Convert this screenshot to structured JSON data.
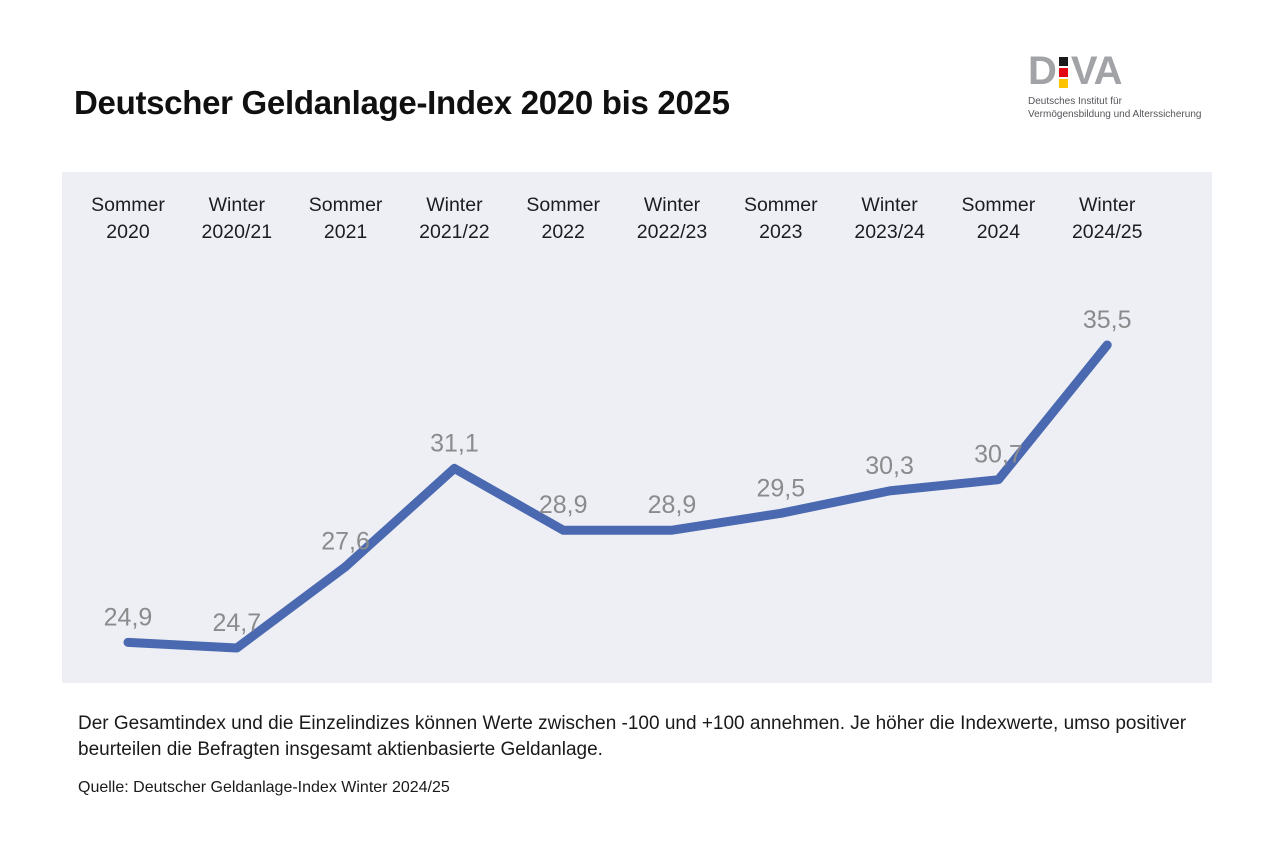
{
  "page": {
    "title": "Deutscher Geldanlage-Index 2020 bis 2025"
  },
  "logo": {
    "letter_d": "D",
    "letters_va": "VA",
    "tagline_line1": "Deutsches Institut für",
    "tagline_line2": "Vermögensbildung und Alterssicherung",
    "colors": {
      "letters": "#a1a3a6",
      "square_black": "#1a1a1a",
      "square_red": "#e30613",
      "square_yellow": "#fdc300"
    }
  },
  "chart_data": {
    "type": "line",
    "title": "Deutscher Geldanlage-Index 2020 bis 2025",
    "categories": [
      {
        "line1": "Sommer",
        "line2": "2020"
      },
      {
        "line1": "Winter",
        "line2": "2020/21"
      },
      {
        "line1": "Sommer",
        "line2": "2021"
      },
      {
        "line1": "Winter",
        "line2": "2021/22"
      },
      {
        "line1": "Sommer",
        "line2": "2022"
      },
      {
        "line1": "Winter",
        "line2": "2022/23"
      },
      {
        "line1": "Sommer",
        "line2": "2023"
      },
      {
        "line1": "Winter",
        "line2": "2023/24"
      },
      {
        "line1": "Sommer",
        "line2": "2024"
      },
      {
        "line1": "Winter",
        "line2": "2024/25"
      }
    ],
    "values": [
      24.9,
      24.7,
      27.6,
      31.1,
      28.9,
      28.9,
      29.5,
      30.3,
      30.7,
      35.5
    ],
    "value_labels": [
      "24,9",
      "24,7",
      "27,6",
      "31,1",
      "28,9",
      "28,9",
      "29,5",
      "30,3",
      "30,7",
      "35,5"
    ],
    "xlabel": "",
    "ylabel": "",
    "ylim": [
      22,
      38
    ],
    "grid": false,
    "legend": "none",
    "axes_hidden": true,
    "line_color": "#4b69b0",
    "panel_bg": "#edeff5",
    "value_label_color": "#8b8b8d"
  },
  "footnote": {
    "line1": "Der Gesamtindex und die Einzelindizes können Werte zwischen -100 und +100 annehmen. Je höher die Indexwerte, umso positiver",
    "line2": "beurteilen die Befragten insgesamt aktienbasierte Geldanlage."
  },
  "source": "Quelle: Deutscher Geldanlage-Index Winter 2024/25"
}
